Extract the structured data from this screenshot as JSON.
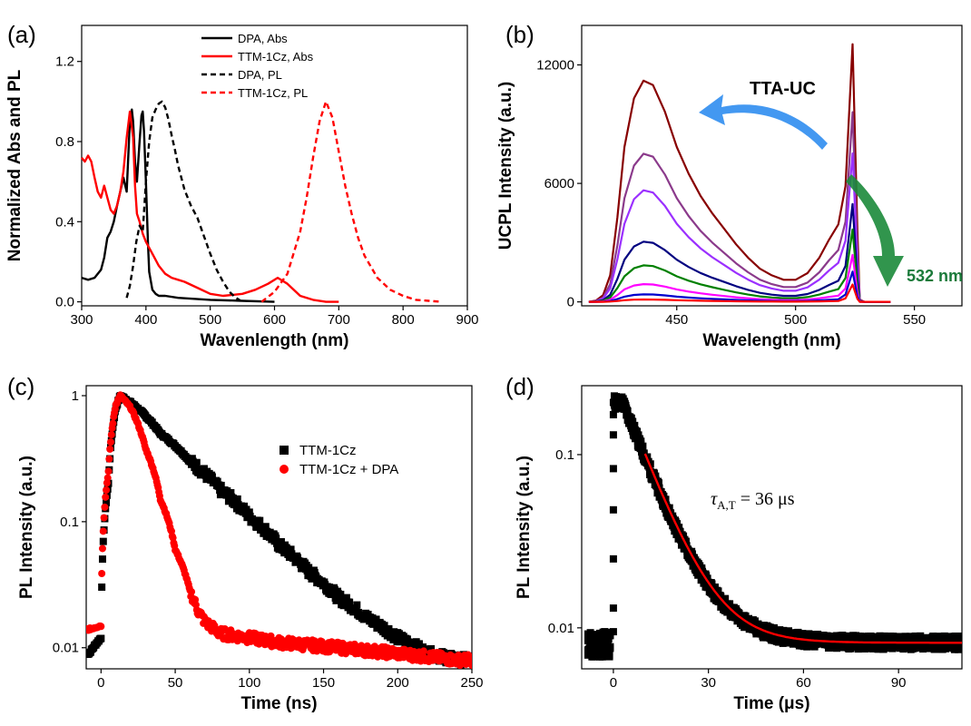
{
  "panels": [
    {
      "label": "(a)",
      "chart_data": {
        "type": "line",
        "xlabel": "Wavenlength (nm)",
        "ylabel": "Normalized Abs and PL",
        "xlim": [
          300,
          900
        ],
        "ylim": [
          -0.02,
          1.38
        ],
        "xticks": [
          300,
          400,
          500,
          600,
          700,
          800,
          900
        ],
        "yticks": [
          0.0,
          0.4,
          0.8,
          1.2
        ],
        "legend_position": "top-center",
        "series": [
          {
            "name": "DPA, Abs",
            "color": "#000000",
            "dash": "solid",
            "x": [
              300,
              310,
              320,
              330,
              335,
              340,
              345,
              350,
              355,
              360,
              365,
              370,
              375,
              378,
              380,
              383,
              386,
              390,
              393,
              395,
              397,
              400,
              403,
              405,
              410,
              415,
              420,
              430,
              450,
              500,
              550,
              600
            ],
            "y": [
              0.12,
              0.11,
              0.12,
              0.16,
              0.22,
              0.32,
              0.35,
              0.4,
              0.48,
              0.55,
              0.62,
              0.55,
              0.9,
              0.96,
              0.9,
              0.7,
              0.6,
              0.8,
              0.93,
              0.95,
              0.85,
              0.6,
              0.3,
              0.15,
              0.06,
              0.04,
              0.03,
              0.03,
              0.02,
              0.01,
              0.005,
              0.0
            ]
          },
          {
            "name": "TTM-1Cz, Abs",
            "color": "#ff0000",
            "dash": "solid",
            "x": [
              300,
              305,
              310,
              315,
              320,
              325,
              330,
              335,
              340,
              345,
              350,
              355,
              360,
              365,
              370,
              375,
              380,
              383,
              386,
              390,
              395,
              400,
              410,
              420,
              430,
              440,
              450,
              460,
              480,
              500,
              520,
              550,
              570,
              590,
              605,
              620,
              640,
              660,
              680,
              700
            ],
            "y": [
              0.72,
              0.7,
              0.73,
              0.7,
              0.62,
              0.55,
              0.52,
              0.58,
              0.52,
              0.46,
              0.44,
              0.48,
              0.55,
              0.65,
              0.82,
              0.95,
              0.82,
              0.58,
              0.44,
              0.4,
              0.34,
              0.3,
              0.24,
              0.18,
              0.14,
              0.12,
              0.11,
              0.1,
              0.07,
              0.04,
              0.03,
              0.04,
              0.06,
              0.09,
              0.12,
              0.09,
              0.03,
              0.01,
              0.0,
              0.0
            ]
          },
          {
            "name": "DPA, PL",
            "color": "#000000",
            "dash": "dash",
            "x": [
              370,
              375,
              380,
              385,
              390,
              395,
              400,
              405,
              410,
              415,
              420,
              425,
              430,
              435,
              440,
              445,
              450,
              460,
              470,
              480,
              490,
              500,
              510,
              520,
              530,
              540,
              550
            ],
            "y": [
              0.02,
              0.08,
              0.18,
              0.3,
              0.38,
              0.35,
              0.6,
              0.8,
              0.92,
              0.96,
              0.99,
              1.0,
              0.97,
              0.91,
              0.83,
              0.76,
              0.68,
              0.56,
              0.48,
              0.42,
              0.33,
              0.24,
              0.16,
              0.1,
              0.05,
              0.02,
              0.0
            ]
          },
          {
            "name": "TTM-1Cz, PL",
            "color": "#ff0000",
            "dash": "dash",
            "x": [
              580,
              600,
              620,
              640,
              650,
              660,
              670,
              680,
              690,
              700,
              710,
              720,
              730,
              740,
              760,
              780,
              800,
              820,
              840,
              860
            ],
            "y": [
              0.0,
              0.05,
              0.14,
              0.35,
              0.52,
              0.72,
              0.9,
              1.0,
              0.92,
              0.75,
              0.58,
              0.44,
              0.32,
              0.23,
              0.12,
              0.06,
              0.03,
              0.01,
              0.005,
              0.0
            ]
          }
        ]
      }
    },
    {
      "label": "(b)",
      "chart_data": {
        "type": "line",
        "xlabel": "Wavelength (nm)",
        "ylabel": "UCPL Intensity (a.u.)",
        "xlim": [
          410,
          570
        ],
        "ylim": [
          -200,
          14000
        ],
        "xticks": [
          450,
          500,
          550
        ],
        "yticks": [
          0,
          6000,
          12000
        ],
        "annotations": {
          "upconversion": "TTA-UC",
          "excitation": "532 nm"
        },
        "series": [
          {
            "color": "#880000",
            "peak": 11200,
            "laser": 9500
          },
          {
            "color": "#8b3a8b",
            "peak": 7500,
            "laser": 7300
          },
          {
            "color": "#9b30ff",
            "peak": 5650,
            "laser": 5800
          },
          {
            "color": "#000080",
            "peak": 3050,
            "laser": 4100
          },
          {
            "color": "#008000",
            "peak": 1850,
            "laser": 3200
          },
          {
            "color": "#ff00ff",
            "peak": 900,
            "laser": 2200
          },
          {
            "color": "#0000cd",
            "peak": 380,
            "laser": 1500
          },
          {
            "color": "#ff0000",
            "peak": 120,
            "laser": 900
          }
        ]
      }
    },
    {
      "label": "(c)",
      "chart_data": {
        "type": "scatter",
        "xlabel": "Time (ns)",
        "ylabel": "PL Intensity (a.u.)",
        "xlim": [
          -10,
          250
        ],
        "ylim": [
          0.0068,
          1.2
        ],
        "yscale": "log",
        "xticks": [
          0,
          50,
          100,
          150,
          200,
          250
        ],
        "yticks": [
          0.01,
          0.1,
          1
        ],
        "ytick_labels": [
          "0.01",
          "0.1",
          "1"
        ],
        "legend_position": "top-right",
        "series": [
          {
            "name": "TTM-1Cz",
            "color": "#000000",
            "marker": "square",
            "x": [
              -8,
              0,
              5,
              10,
              13,
              20,
              40,
              60,
              80,
              100,
              120,
              140,
              160,
              180,
              200,
              220,
              240,
              250
            ],
            "y": [
              0.009,
              0.012,
              0.2,
              0.8,
              1.0,
              0.88,
              0.5,
              0.3,
              0.18,
              0.11,
              0.065,
              0.04,
              0.025,
              0.017,
              0.012,
              0.009,
              0.008,
              0.008
            ]
          },
          {
            "name": "TTM-1Cz + DPA",
            "color": "#ff0000",
            "marker": "circle",
            "x": [
              -8,
              0,
              5,
              10,
              13,
              20,
              30,
              40,
              50,
              60,
              65,
              70,
              80,
              100,
              120,
              140,
              160,
              180,
              200,
              220,
              240,
              250
            ],
            "y": [
              0.014,
              0.015,
              0.25,
              0.85,
              1.0,
              0.8,
              0.38,
              0.15,
              0.06,
              0.028,
              0.02,
              0.016,
              0.013,
              0.012,
              0.011,
              0.0105,
              0.01,
              0.0095,
              0.009,
              0.0085,
              0.008,
              0.008
            ]
          }
        ]
      }
    },
    {
      "label": "(d)",
      "chart_data": {
        "type": "scatter",
        "xlabel": "Time (μs)",
        "ylabel": "PL Intensity (a.u.)",
        "xlim": [
          -10,
          110
        ],
        "ylim": [
          0.0058,
          0.25
        ],
        "yscale": "log",
        "xticks": [
          0,
          30,
          60,
          90
        ],
        "yticks": [
          0.01,
          0.1
        ],
        "ytick_labels": [
          "0.01",
          "0.1"
        ],
        "annotation": "τA,T = 36 μs",
        "fit": {
          "color": "#ff0000",
          "x_start": 10,
          "baseline": 0.0082,
          "amplitude": 0.093,
          "tau": 9
        },
        "series": [
          {
            "name": "data",
            "color": "#000000",
            "marker": "square",
            "pre_x": [
              -8,
              -1
            ],
            "pre_y": 0.008,
            "onset_x": 0,
            "onset_y": [
              0.0095,
              0.013,
              0.025,
              0.048,
              0.083,
              0.13,
              0.17,
              0.2
            ],
            "peak": 0.2,
            "peak_end": 3
          }
        ]
      }
    }
  ]
}
